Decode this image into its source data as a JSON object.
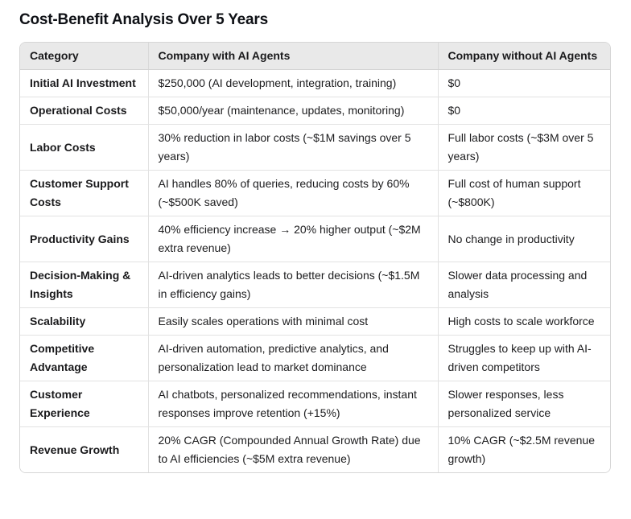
{
  "page": {
    "title": "Cost-Benefit Analysis Over 5 Years"
  },
  "colors": {
    "header_background": "#e9e9e9",
    "outer_border": "#d6d6d6",
    "inner_border": "#e2e2e2",
    "text": "#1c1c1e",
    "page_background": "#ffffff"
  },
  "table": {
    "columns": [
      "Category",
      "Company with AI Agents",
      "Company without AI Agents"
    ],
    "rows": [
      {
        "category": "Initial AI Investment",
        "with_ai": "$250,000 (AI development, integration, training)",
        "without_ai": "$0"
      },
      {
        "category": "Operational Costs",
        "with_ai": "$50,000/year (maintenance, updates, monitoring)",
        "without_ai": "$0"
      },
      {
        "category": "Labor Costs",
        "with_ai": "30% reduction in labor costs (~$1M savings over 5 years)",
        "without_ai": "Full labor costs (~$3M over 5 years)"
      },
      {
        "category": "Customer Support Costs",
        "with_ai": "AI handles 80% of queries, reducing costs by 60% (~$500K saved)",
        "without_ai": "Full cost of human support (~$800K)"
      },
      {
        "category": "Productivity Gains",
        "with_ai": "40% efficiency increase → 20% higher output (~$2M extra revenue)",
        "without_ai": "No change in productivity"
      },
      {
        "category": "Decision-Making & Insights",
        "with_ai": "AI-driven analytics leads to better decisions (~$1.5M in efficiency gains)",
        "without_ai": "Slower data processing and analysis"
      },
      {
        "category": "Scalability",
        "with_ai": "Easily scales operations with minimal cost",
        "without_ai": "High costs to scale workforce"
      },
      {
        "category": "Competitive Advantage",
        "with_ai": "AI-driven automation, predictive analytics, and personalization lead to market dominance",
        "without_ai": "Struggles to keep up with AI-driven competitors"
      },
      {
        "category": "Customer Experience",
        "with_ai": "AI chatbots, personalized recommendations, instant responses improve retention (+15%)",
        "without_ai": "Slower responses, less personalized service"
      },
      {
        "category": "Revenue Growth",
        "with_ai": "20% CAGR (Compounded Annual Growth Rate) due to AI efficiencies (~$5M extra revenue)",
        "without_ai": "10% CAGR (~$2.5M revenue growth)"
      }
    ]
  }
}
